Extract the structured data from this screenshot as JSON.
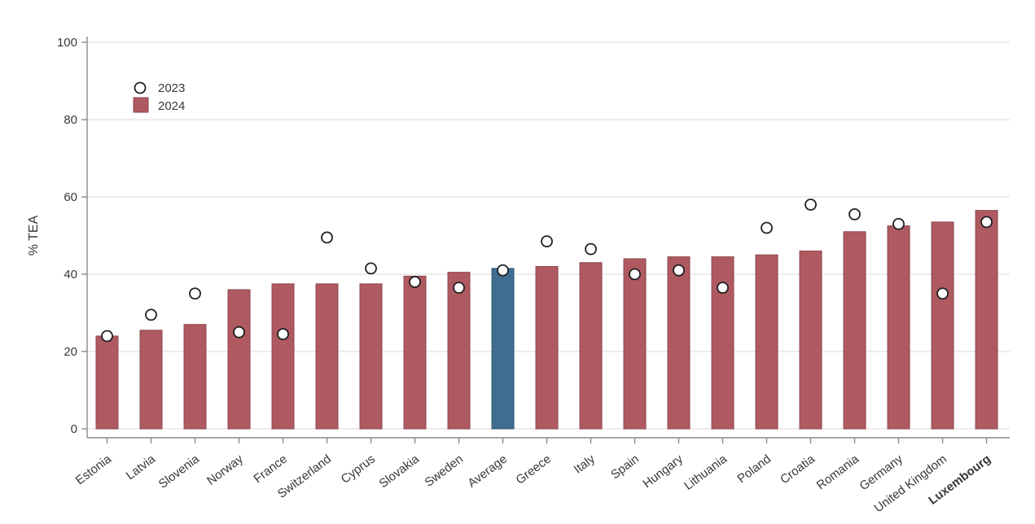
{
  "chart_data": {
    "type": "bar",
    "title": "",
    "xlabel": "",
    "ylabel": "% TEA",
    "ylim": [
      0,
      100
    ],
    "yticks": [
      0,
      20,
      40,
      60,
      80,
      100
    ],
    "grid": true,
    "legend_position": "top-left-inside",
    "legend_items": [
      {
        "label": "2023",
        "marker": "open-circle"
      },
      {
        "label": "2024",
        "marker": "filled-square"
      }
    ],
    "categories": [
      "Estonia",
      "Latvia",
      "Slovenia",
      "Norway",
      "France",
      "Switzerland",
      "Cyprus",
      "Slovakia",
      "Sweden",
      "Average",
      "Greece",
      "Italy",
      "Spain",
      "Hungary",
      "Lithuania",
      "Poland",
      "Croatia",
      "Romania",
      "Germany",
      "United Kingdom",
      "Luxembourg"
    ],
    "bold_categories": [
      "Luxembourg"
    ],
    "highlight_category": "Average",
    "series": [
      {
        "name": "2023",
        "render": "scatter",
        "marker": "open-circle",
        "values": [
          24,
          29.5,
          35,
          25,
          24.5,
          49.5,
          41.5,
          38,
          36.5,
          41,
          48.5,
          46.5,
          40,
          41,
          36.5,
          52,
          58,
          55.5,
          53,
          35,
          53.5
        ]
      },
      {
        "name": "2024",
        "render": "bar",
        "values": [
          24,
          25.5,
          27,
          36,
          37.5,
          37.5,
          37.5,
          39.5,
          40.5,
          41.5,
          42,
          43,
          44,
          44.5,
          44.5,
          45,
          46,
          51,
          52.5,
          53.5,
          56.5
        ]
      }
    ],
    "colors": {
      "bar_fill": "#ae5a60",
      "bar_stroke": "#8d474d",
      "highlight_fill": "#3f6c91",
      "highlight_stroke": "#2f5878",
      "marker_fill": "#ffffff",
      "marker_stroke": "#1f1f1f",
      "gridline": "#eae5e5",
      "axis_line": "#8a8a8a",
      "tick_label": "#383838",
      "background": "#ffffff"
    }
  }
}
